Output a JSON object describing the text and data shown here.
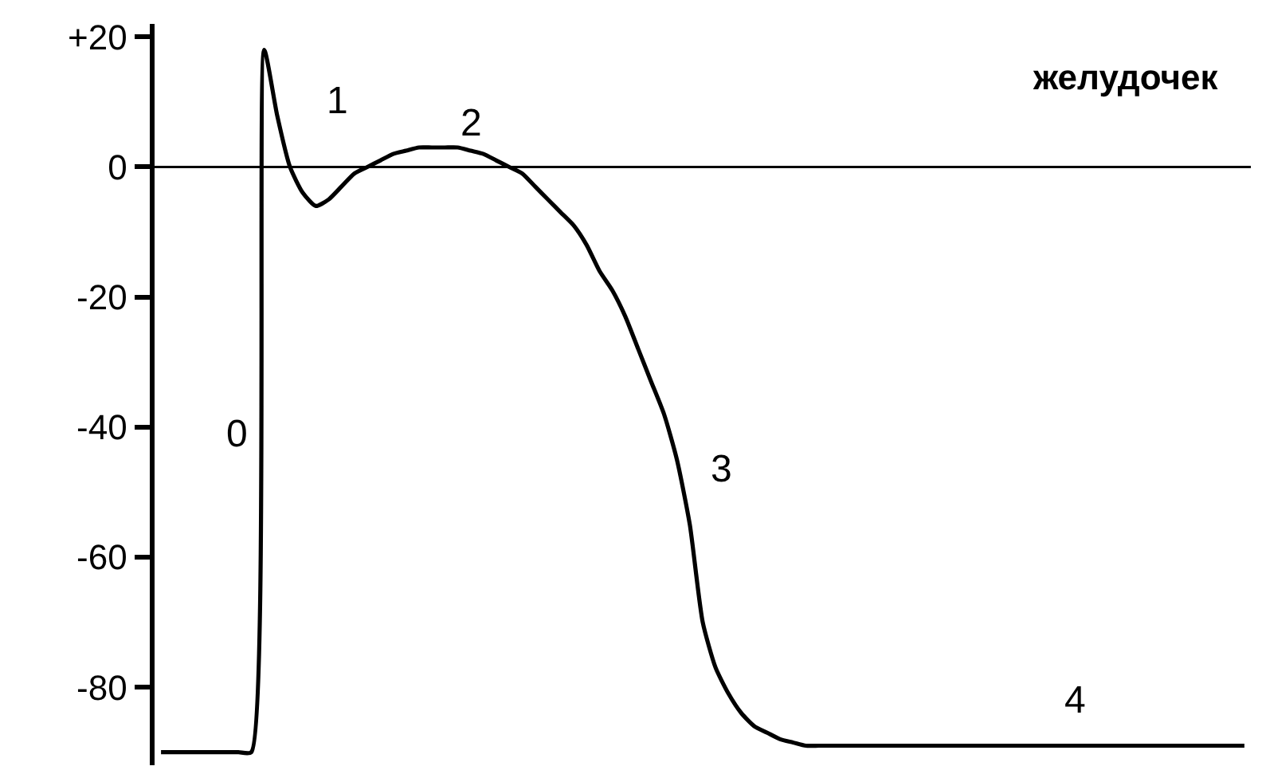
{
  "chart_data": {
    "type": "line",
    "title": "желудочек",
    "categories": [
      null,
      null,
      null,
      null,
      null,
      null,
      null,
      null,
      null,
      null,
      null,
      null,
      null,
      null,
      null,
      null,
      null,
      null,
      null,
      null,
      null,
      null,
      null,
      null,
      null,
      null,
      null,
      null,
      null,
      null,
      null,
      null,
      null,
      null,
      null,
      null,
      null,
      null,
      null,
      null,
      null,
      null,
      null,
      null,
      null,
      null,
      null,
      null,
      null,
      null,
      null,
      null,
      null,
      null,
      null,
      null,
      null,
      null,
      null,
      null,
      null,
      null,
      null,
      null,
      null,
      null,
      null,
      null,
      null,
      null,
      null,
      null,
      null,
      null,
      null,
      null,
      null,
      null,
      null,
      null,
      null,
      null,
      null,
      null,
      null
    ],
    "series": [
      {
        "color": "#000000",
        "values": [
          -90,
          -90,
          -90,
          -90,
          -90,
          -90,
          -90,
          -90,
          18,
          8,
          0,
          -4,
          -6,
          -5,
          -3,
          -1,
          0,
          1,
          2,
          2.5,
          3,
          3,
          3,
          3,
          2.5,
          2,
          1,
          0,
          -1,
          -3,
          -5,
          -7,
          -9,
          -12,
          -16,
          -19,
          -23,
          -28,
          -33,
          -38,
          -45,
          -55,
          -70,
          -77,
          -81,
          -84,
          -86,
          -87,
          -88,
          -88.5,
          -89,
          -89,
          -89,
          -89,
          -89,
          -89,
          -89,
          -89,
          -89,
          -89,
          -89,
          -89,
          -89,
          -89,
          -89,
          -89,
          -89,
          -89,
          -89,
          -89,
          -89,
          -89,
          -89,
          -89,
          -89,
          -89,
          -89,
          -89,
          -89,
          -89,
          -89,
          -89,
          -89,
          -89,
          -89
        ]
      }
    ],
    "ylim": [
      -92,
      22
    ],
    "yticks": [
      {
        "value": 20,
        "label": "+20"
      },
      0,
      -20,
      -40,
      -60,
      -80
    ],
    "ref_lines": [
      {
        "axis": "y",
        "value": 0,
        "color": "#000000"
      }
    ],
    "annotations": [
      "0",
      "1",
      "2",
      "3",
      "4"
    ],
    "tick_labels": "y",
    "marker": "none",
    "line_style": "solid"
  }
}
